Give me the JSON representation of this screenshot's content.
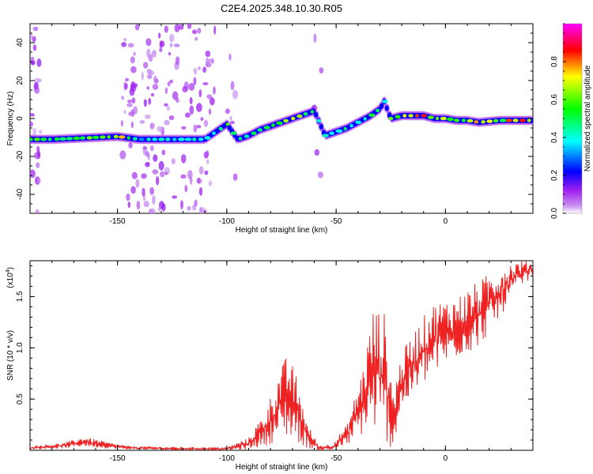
{
  "title": "C2E4.2025.348.10.30.R05",
  "chart_data": [
    {
      "type": "heatmap",
      "xlabel": "Height of straight line (km)",
      "ylabel": "Frequency (Hz)",
      "xlim": [
        -190,
        40
      ],
      "ylim": [
        -50,
        50
      ],
      "xticks": [
        -150,
        -100,
        -50,
        0
      ],
      "yticks": [
        -40,
        -20,
        0,
        20,
        40
      ],
      "tick_labels_x": [
        "-150",
        "-100",
        "-50",
        "0"
      ],
      "tick_labels_y": [
        "-40",
        "-20",
        "0",
        "20",
        "40"
      ],
      "colorbar": {
        "label": "Normalized spectral amplitude",
        "range": [
          0,
          1
        ],
        "ticks": [
          0.0,
          0.2,
          0.4,
          0.6,
          0.8
        ],
        "tick_labels": [
          "0.0",
          "0.2",
          "0.4",
          "0.6",
          "0.8"
        ],
        "colormap": [
          "#ffffff",
          "#a020f0",
          "#0000ff",
          "#00ffff",
          "#00ff00",
          "#ffff00",
          "#ff0000",
          "#ff00ff"
        ]
      },
      "ridge": [
        {
          "x": -190,
          "y": -11,
          "a": 0.55
        },
        {
          "x": -180,
          "y": -11,
          "a": 0.6
        },
        {
          "x": -170,
          "y": -10.5,
          "a": 0.55
        },
        {
          "x": -160,
          "y": -10,
          "a": 0.6
        },
        {
          "x": -150,
          "y": -9.5,
          "a": 0.8
        },
        {
          "x": -140,
          "y": -11,
          "a": 0.4
        },
        {
          "x": -130,
          "y": -11,
          "a": 0.4
        },
        {
          "x": -120,
          "y": -11,
          "a": 0.45
        },
        {
          "x": -110,
          "y": -11,
          "a": 0.35
        },
        {
          "x": -100,
          "y": -3,
          "a": 0.6
        },
        {
          "x": -95,
          "y": -11,
          "a": 0.45
        },
        {
          "x": -90,
          "y": -9,
          "a": 0.5
        },
        {
          "x": -85,
          "y": -6,
          "a": 0.55
        },
        {
          "x": -80,
          "y": -4,
          "a": 0.6
        },
        {
          "x": -75,
          "y": -2,
          "a": 0.6
        },
        {
          "x": -70,
          "y": 0,
          "a": 0.65
        },
        {
          "x": -65,
          "y": 2,
          "a": 0.6
        },
        {
          "x": -60,
          "y": 4,
          "a": 0.45
        },
        {
          "x": -55,
          "y": -9,
          "a": 0.4
        },
        {
          "x": -50,
          "y": -7,
          "a": 0.45
        },
        {
          "x": -45,
          "y": -5,
          "a": 0.5
        },
        {
          "x": -40,
          "y": -2,
          "a": 0.5
        },
        {
          "x": -35,
          "y": 1,
          "a": 0.55
        },
        {
          "x": -30,
          "y": 5,
          "a": 0.5
        },
        {
          "x": -28,
          "y": 9,
          "a": 0.45
        },
        {
          "x": -25,
          "y": 0,
          "a": 0.6
        },
        {
          "x": -20,
          "y": 1.5,
          "a": 0.85
        },
        {
          "x": -15,
          "y": 1.5,
          "a": 0.8
        },
        {
          "x": -10,
          "y": 1.5,
          "a": 0.9
        },
        {
          "x": -5,
          "y": 0,
          "a": 0.7
        },
        {
          "x": 0,
          "y": 0,
          "a": 0.75
        },
        {
          "x": 5,
          "y": -1,
          "a": 0.7
        },
        {
          "x": 10,
          "y": -1,
          "a": 0.65
        },
        {
          "x": 15,
          "y": -2,
          "a": 0.75
        },
        {
          "x": 20,
          "y": -1.5,
          "a": 0.7
        },
        {
          "x": 25,
          "y": -1,
          "a": 0.6
        },
        {
          "x": 30,
          "y": -1,
          "a": 0.9
        },
        {
          "x": 40,
          "y": -1,
          "a": 0.7
        }
      ]
    },
    {
      "type": "line",
      "xlabel": "Height of straight line (km)",
      "ylabel": "SNR (10 * v/v)",
      "ylabel_scale": "(x10",
      "ylabel_scale_exponent": "4",
      "xlim": [
        -190,
        40
      ],
      "ylim": [
        0,
        1.85
      ],
      "xticks": [
        -150,
        -100,
        -50,
        0
      ],
      "yticks": [
        0.5,
        1.0,
        1.5
      ],
      "tick_labels_x": [
        "-150",
        "-100",
        "-50",
        "0"
      ],
      "tick_labels_y": [
        "0.5",
        "1.0",
        "1.5"
      ],
      "series": [
        {
          "name": "SNR",
          "color": "#ee2222",
          "envelope": [
            {
              "x": -190,
              "lo": 0.01,
              "hi": 0.04
            },
            {
              "x": -175,
              "lo": 0.02,
              "hi": 0.07
            },
            {
              "x": -165,
              "lo": 0.04,
              "hi": 0.13
            },
            {
              "x": -155,
              "lo": 0.02,
              "hi": 0.08
            },
            {
              "x": -145,
              "lo": 0.01,
              "hi": 0.04
            },
            {
              "x": -120,
              "lo": 0.0,
              "hi": 0.03
            },
            {
              "x": -100,
              "lo": 0.0,
              "hi": 0.03
            },
            {
              "x": -90,
              "lo": 0.01,
              "hi": 0.12
            },
            {
              "x": -82,
              "lo": 0.05,
              "hi": 0.4
            },
            {
              "x": -76,
              "lo": 0.1,
              "hi": 0.78
            },
            {
              "x": -72,
              "lo": 0.12,
              "hi": 0.95
            },
            {
              "x": -68,
              "lo": 0.08,
              "hi": 0.72
            },
            {
              "x": -63,
              "lo": 0.02,
              "hi": 0.25
            },
            {
              "x": -58,
              "lo": 0.0,
              "hi": 0.05
            },
            {
              "x": -52,
              "lo": 0.0,
              "hi": 0.06
            },
            {
              "x": -45,
              "lo": 0.05,
              "hi": 0.25
            },
            {
              "x": -38,
              "lo": 0.15,
              "hi": 0.8
            },
            {
              "x": -33,
              "lo": 0.2,
              "hi": 1.4
            },
            {
              "x": -28,
              "lo": 0.1,
              "hi": 1.35
            },
            {
              "x": -24,
              "lo": 0.0,
              "hi": 0.6
            },
            {
              "x": -20,
              "lo": 0.4,
              "hi": 0.95
            },
            {
              "x": -12,
              "lo": 0.6,
              "hi": 1.25
            },
            {
              "x": -5,
              "lo": 0.75,
              "hi": 1.45
            },
            {
              "x": 5,
              "lo": 0.9,
              "hi": 1.5
            },
            {
              "x": 15,
              "lo": 1.0,
              "hi": 1.65
            },
            {
              "x": 25,
              "lo": 1.3,
              "hi": 1.8
            },
            {
              "x": 32,
              "lo": 1.55,
              "hi": 1.85
            },
            {
              "x": 40,
              "lo": 1.7,
              "hi": 1.85
            }
          ]
        }
      ]
    }
  ]
}
